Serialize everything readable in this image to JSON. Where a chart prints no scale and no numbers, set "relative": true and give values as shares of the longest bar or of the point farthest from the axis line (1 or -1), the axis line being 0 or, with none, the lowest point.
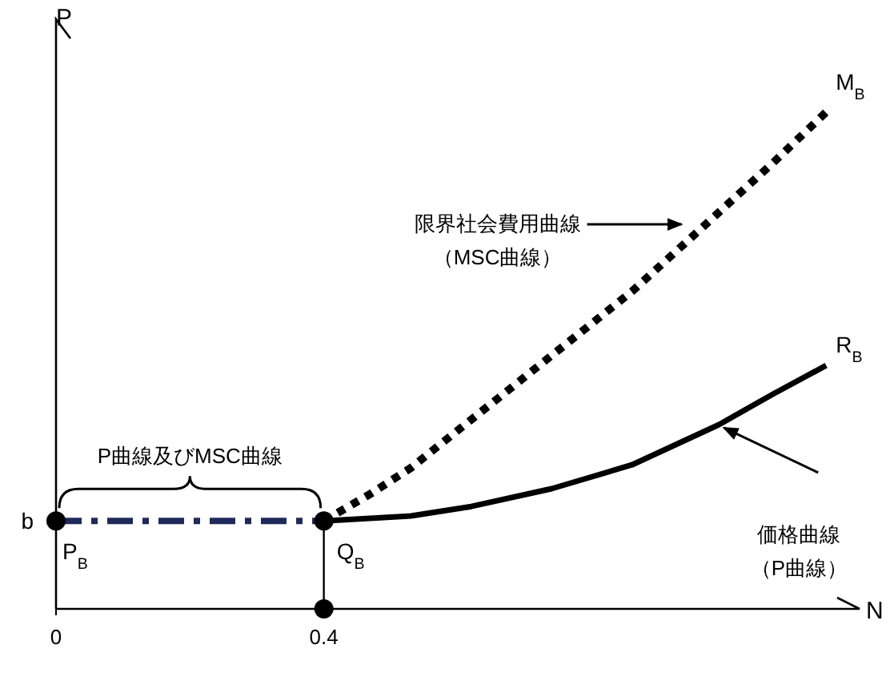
{
  "chart_data": {
    "type": "line",
    "relative": true,
    "xlabel": "N",
    "ylabel": "P",
    "xlim": [
      0,
      1.2
    ],
    "xticks": [
      0,
      0.4
    ],
    "grid": false,
    "tick_labels": "x",
    "series": [
      {
        "type": "line",
        "color": "#1f2a5a",
        "line_style": "dashed",
        "x": [
          0,
          0.4
        ],
        "values": [
          0.177,
          0.177
        ]
      },
      {
        "type": "line",
        "color": "#000000",
        "line_style": "dotted",
        "x": [
          0.4,
          0.47,
          0.53,
          0.62,
          0.74,
          0.86,
          0.97,
          1.07,
          1.15
        ],
        "values": [
          0.177,
          0.232,
          0.284,
          0.381,
          0.51,
          0.639,
          0.774,
          0.897,
          1.0
        ]
      },
      {
        "type": "line",
        "color": "#000000",
        "line_style": "solid",
        "x": [
          0.4,
          0.53,
          0.62,
          0.74,
          0.86,
          0.99,
          1.07,
          1.15
        ],
        "values": [
          0.177,
          0.187,
          0.206,
          0.242,
          0.29,
          0.371,
          0.432,
          0.49
        ]
      },
      {
        "type": "line",
        "color": "#000000",
        "line_style": "solid",
        "x": [
          0.4,
          0.4
        ],
        "values": [
          0,
          0.177
        ]
      },
      {
        "type": "scatter",
        "color": "#000000",
        "marker": "circle",
        "x": [
          0,
          0.4,
          0.4
        ],
        "values": [
          0.177,
          0.177,
          0
        ]
      }
    ],
    "annotations": [
      {
        "text": "b",
        "x": 0,
        "y": 0.177
      },
      {
        "text": "P$_{B}$",
        "x": 0,
        "y": 0.177
      },
      {
        "text": "Q$_{B}$",
        "x": 0.4,
        "y": 0.177
      },
      {
        "text": "M$_{B}$",
        "x": 1.15,
        "y": 1.0
      },
      {
        "text": "R$_{B}$",
        "x": 1.15,
        "y": 0.49
      },
      "限界社会費用曲線（MSC曲線）",
      "価格曲線（P曲線）",
      "P曲線及びMSC曲線"
    ]
  }
}
